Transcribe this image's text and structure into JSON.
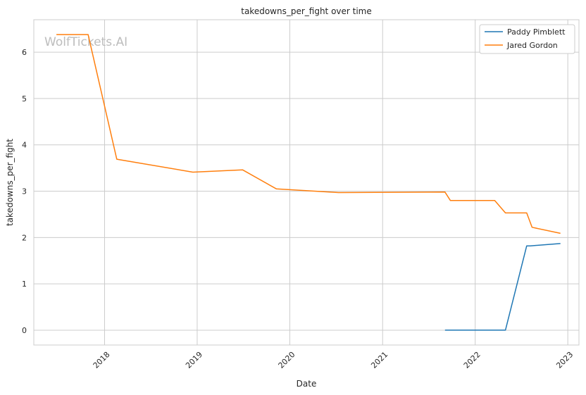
{
  "chart_data": {
    "type": "line",
    "title": "takedowns_per_fight over time",
    "xlabel": "Date",
    "ylabel": "takedowns_per_fight",
    "watermark": "WolfTickets.AI",
    "xlim": [
      "2017-03-28",
      "2023-02-14"
    ],
    "ylim": [
      -0.32,
      6.7
    ],
    "x_ticks": [
      "2018-01-01",
      "2019-01-01",
      "2020-01-01",
      "2021-01-01",
      "2022-01-01",
      "2023-01-01"
    ],
    "x_tick_labels": [
      "2018",
      "2019",
      "2020",
      "2021",
      "2022",
      "2023"
    ],
    "y_ticks": [
      0,
      1,
      2,
      3,
      4,
      5,
      6
    ],
    "grid": true,
    "legend_position": "top-right",
    "series": [
      {
        "name": "Paddy Pimblett",
        "color": "#1f77b4",
        "x": [
          "2021-09-04",
          "2022-03-19",
          "2022-04-30",
          "2022-07-23",
          "2022-08-06",
          "2022-12-03"
        ],
        "y": [
          0,
          0,
          0,
          1.82,
          1.82,
          1.87
        ]
      },
      {
        "name": "Jared Gordon",
        "color": "#ff7f0e",
        "x": [
          "2017-06-25",
          "2017-10-28",
          "2018-02-18",
          "2018-12-15",
          "2019-06-29",
          "2019-11-09",
          "2020-07-11",
          "2021-09-04",
          "2021-09-25",
          "2022-03-19",
          "2022-04-30",
          "2022-07-23",
          "2022-08-13",
          "2022-12-03"
        ],
        "y": [
          6.38,
          6.38,
          3.69,
          3.41,
          3.46,
          3.05,
          2.97,
          2.98,
          2.8,
          2.8,
          2.53,
          2.53,
          2.22,
          2.09
        ]
      }
    ]
  }
}
